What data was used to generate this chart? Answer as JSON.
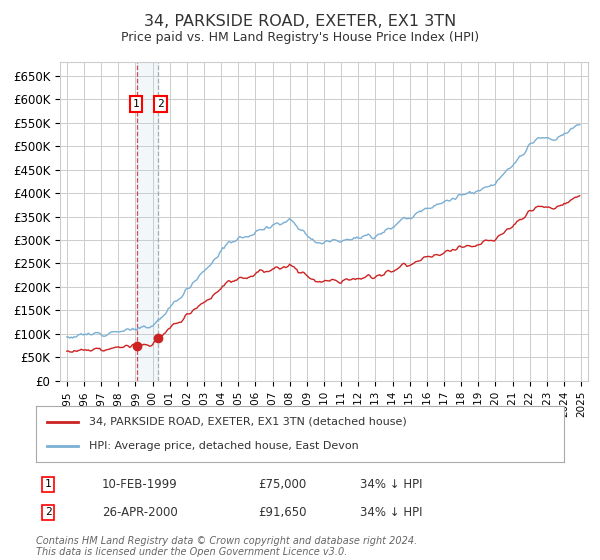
{
  "title": "34, PARKSIDE ROAD, EXETER, EX1 3TN",
  "subtitle": "Price paid vs. HM Land Registry's House Price Index (HPI)",
  "legend_line1": "34, PARKSIDE ROAD, EXETER, EX1 3TN (detached house)",
  "legend_line2": "HPI: Average price, detached house, East Devon",
  "transaction1_date": "10-FEB-1999",
  "transaction1_price": 75000,
  "transaction1_year": 1999.12,
  "transaction2_date": "26-APR-2000",
  "transaction2_price": 91650,
  "transaction2_year": 2000.32,
  "footer": "Contains HM Land Registry data © Crown copyright and database right 2024.\nThis data is licensed under the Open Government Licence v3.0.",
  "hpi_color": "#7bafd4",
  "price_color": "#cc2222",
  "background_color": "#ffffff",
  "grid_color": "#cccccc",
  "ylim": [
    0,
    680000
  ],
  "yticks": [
    0,
    50000,
    100000,
    150000,
    200000,
    250000,
    300000,
    350000,
    400000,
    450000,
    500000,
    550000,
    600000,
    650000
  ],
  "xlim_start": 1994.6,
  "xlim_end": 2025.4
}
